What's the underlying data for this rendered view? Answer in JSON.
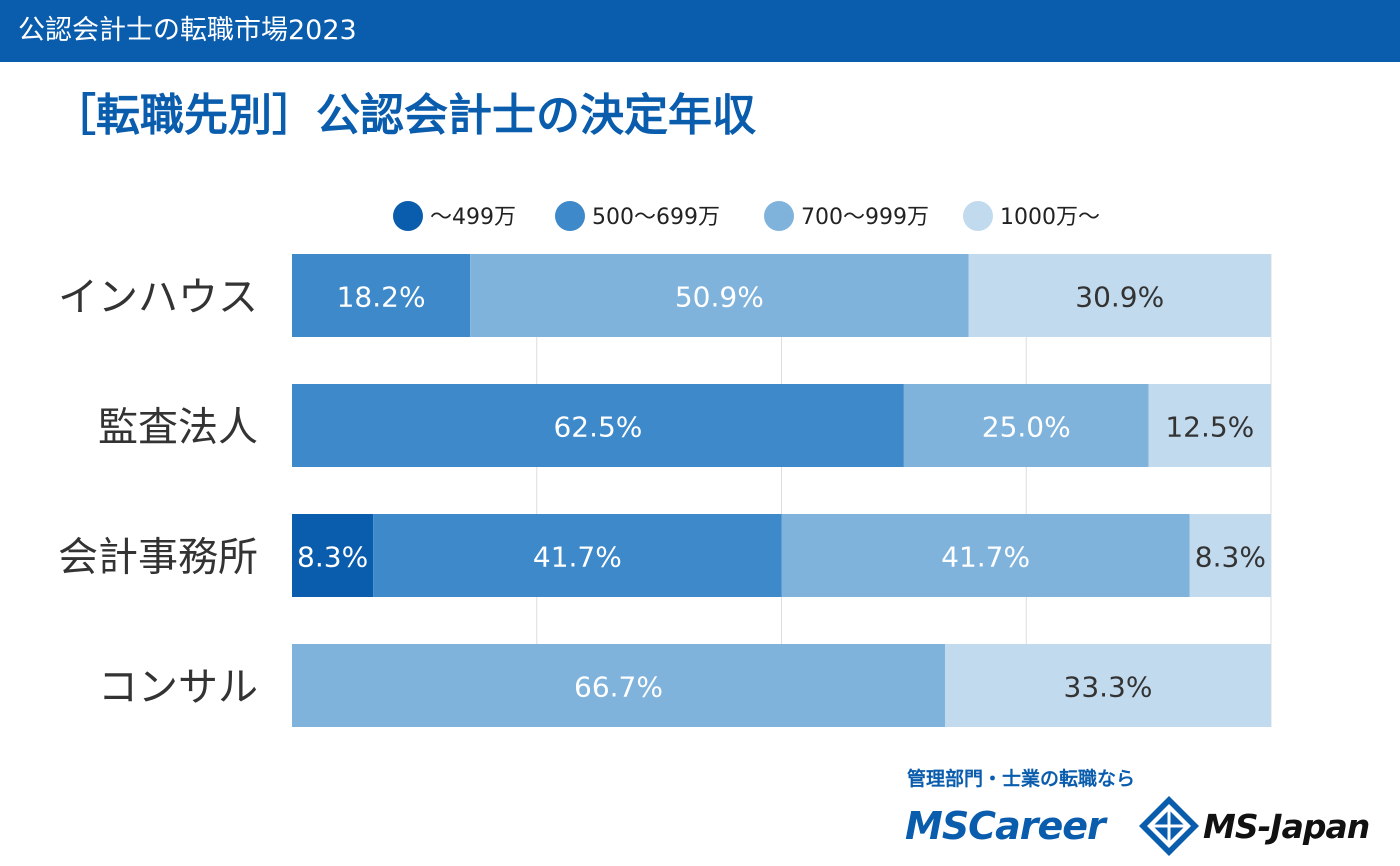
{
  "header": {
    "title": "公認会計士の転職市場2023"
  },
  "page_title": "［転職先別］公認会計士の決定年収",
  "chart_data": {
    "type": "bar",
    "orientation": "horizontal",
    "stacked": true,
    "categories": [
      "インハウス",
      "監査法人",
      "会計事務所",
      "コンサル"
    ],
    "series": [
      {
        "name": "〜499万",
        "color": "#0a5cad",
        "values": [
          0,
          0,
          8.3,
          0
        ]
      },
      {
        "name": "500〜699万",
        "color": "#3d89c9",
        "values": [
          18.2,
          62.5,
          41.7,
          0
        ]
      },
      {
        "name": "700〜999万",
        "color": "#80b3dc",
        "values": [
          50.9,
          25.0,
          41.7,
          66.7
        ]
      },
      {
        "name": "1000万〜",
        "color": "#c2daee",
        "values": [
          30.9,
          12.5,
          8.3,
          33.3
        ]
      }
    ],
    "value_suffix": "%",
    "xlim": [
      0,
      100
    ],
    "grid": true,
    "legend_position": "top"
  },
  "logo": {
    "tagline": "管理部門・士業の転職なら",
    "brand_primary": "MSCareer",
    "brand_secondary": "MS-Japan"
  }
}
